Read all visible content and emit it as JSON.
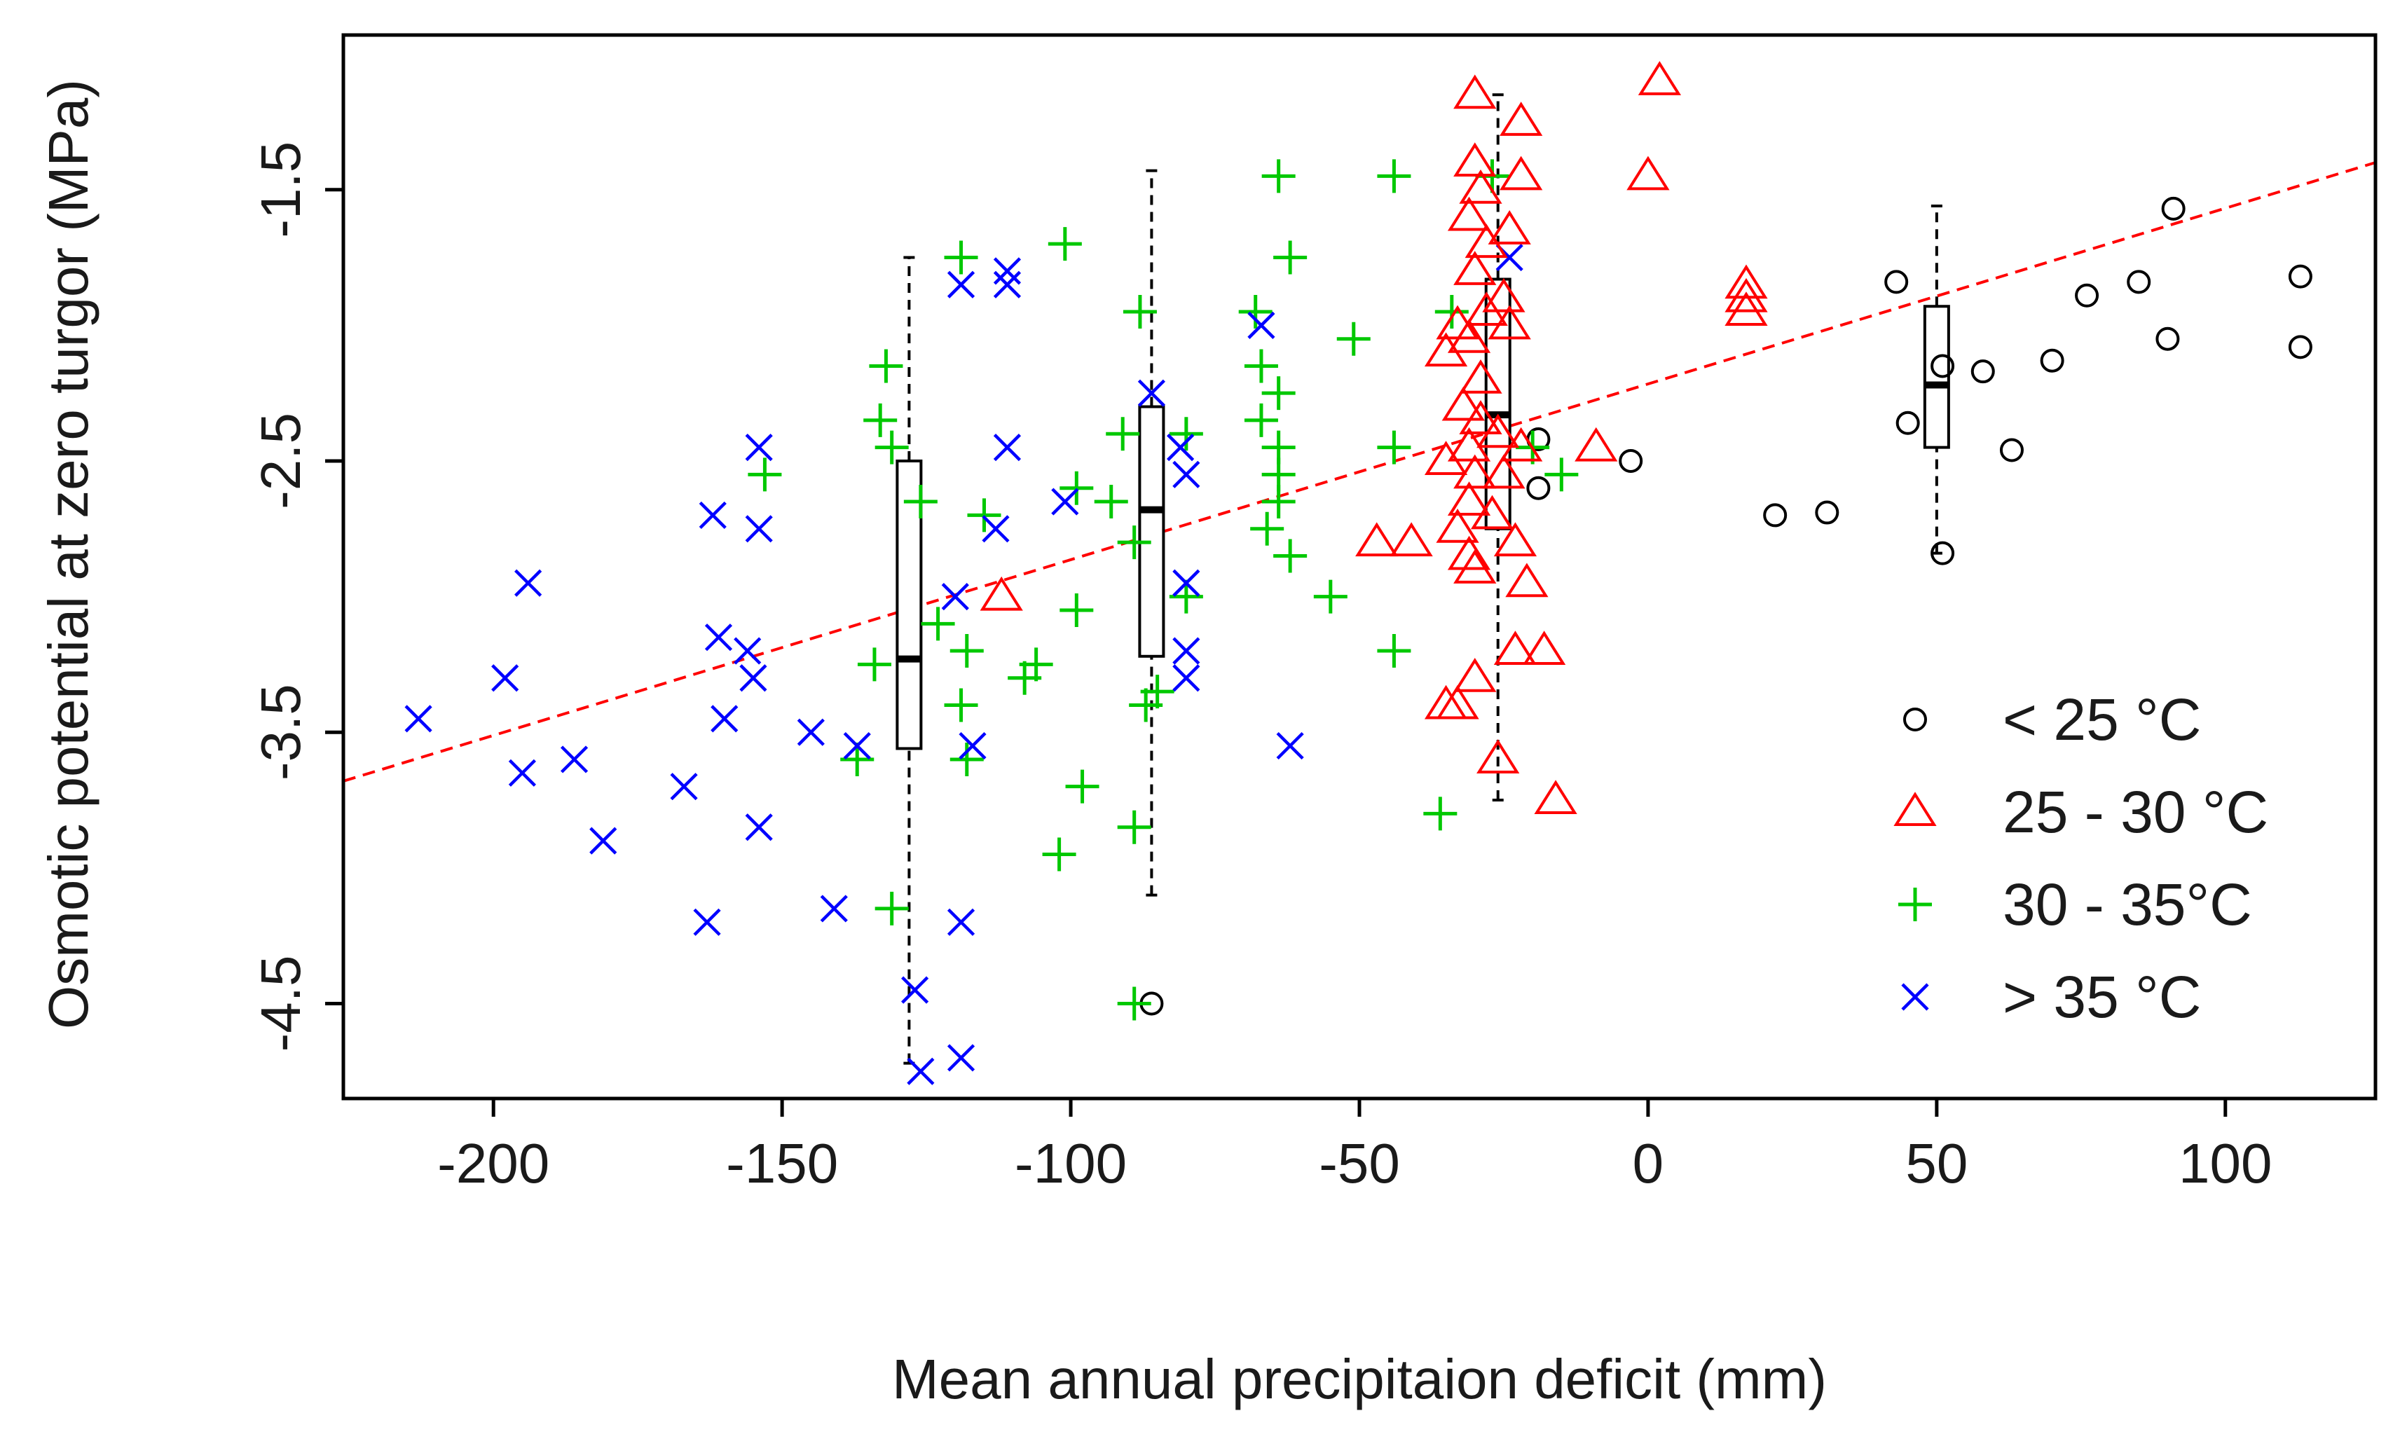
{
  "chart_data": {
    "type": "scatter",
    "title": "",
    "xlabel": "Mean annual precipitaion deficit  (mm)",
    "ylabel": "Osmotic potential at zero turgor (MPa)",
    "xlim": [
      -226,
      126
    ],
    "ylim": [
      -4.85,
      -0.93
    ],
    "x_ticks": [
      -200,
      -150,
      -100,
      -50,
      0,
      50,
      100
    ],
    "x_tick_labels": [
      "-200",
      "-150",
      "-100",
      "-50",
      "0",
      "50",
      "100"
    ],
    "y_ticks": [
      -4.5,
      -3.5,
      -2.5,
      -1.5
    ],
    "y_tick_labels": [
      "-4.5",
      "-3.5",
      "-2.5",
      "-1.5"
    ],
    "grid": false,
    "legend_position": "bottom-right",
    "colors": {
      "lt25": "#000000",
      "t25_30": "#ff0000",
      "t30_35": "#00c800",
      "gt35": "#0000ff",
      "trend": "#ff0000",
      "axis": "#000000"
    },
    "legend": [
      {
        "label": "< 25 °C",
        "series": "lt25",
        "marker": "circle"
      },
      {
        "label": "25 - 30 °C",
        "series": "t25_30",
        "marker": "triangle"
      },
      {
        "label": "30 - 35°C",
        "series": "t30_35",
        "marker": "plus"
      },
      {
        "label": "> 35 °C",
        "series": "gt35",
        "marker": "cross"
      }
    ],
    "trend_line": {
      "x": [
        -226,
        126
      ],
      "y": [
        -3.68,
        -1.4
      ],
      "style": "dashed"
    },
    "series": [
      {
        "name": "< 25 °C",
        "key": "lt25",
        "marker": "circle",
        "points": [
          [
            -86,
            -4.5
          ],
          [
            -19,
            -2.42
          ],
          [
            -19,
            -2.6
          ],
          [
            -3,
            -2.5
          ],
          [
            22,
            -2.7
          ],
          [
            31,
            -2.69
          ],
          [
            43,
            -1.84
          ],
          [
            45,
            -2.36
          ],
          [
            51,
            -2.15
          ],
          [
            51,
            -2.84
          ],
          [
            58,
            -2.17
          ],
          [
            63,
            -2.46
          ],
          [
            70,
            -2.13
          ],
          [
            76,
            -1.89
          ],
          [
            85,
            -1.84
          ],
          [
            90,
            -2.05
          ],
          [
            91,
            -1.57
          ],
          [
            113,
            -1.82
          ],
          [
            113,
            -2.08
          ]
        ]
      },
      {
        "name": "25 - 30 °C",
        "key": "t25_30",
        "marker": "triangle",
        "points": [
          [
            -30,
            -1.15
          ],
          [
            -22,
            -1.25
          ],
          [
            -30,
            -1.4
          ],
          [
            -29,
            -1.5
          ],
          [
            -22,
            -1.45
          ],
          [
            -31,
            -1.6
          ],
          [
            -28,
            -1.7
          ],
          [
            -24,
            -1.65
          ],
          [
            -30,
            -1.8
          ],
          [
            -28,
            -1.95
          ],
          [
            -33,
            -2.0
          ],
          [
            -25,
            -1.9
          ],
          [
            -24,
            -2.0
          ],
          [
            -31,
            -2.05
          ],
          [
            -35,
            -2.1
          ],
          [
            -29,
            -2.2
          ],
          [
            -32,
            -2.3
          ],
          [
            -29,
            -2.35
          ],
          [
            -26,
            -2.4
          ],
          [
            -31,
            -2.45
          ],
          [
            -35,
            -2.5
          ],
          [
            -30,
            -2.55
          ],
          [
            -25,
            -2.55
          ],
          [
            -31,
            -2.65
          ],
          [
            -27,
            -2.7
          ],
          [
            -33,
            -2.75
          ],
          [
            -23,
            -2.8
          ],
          [
            -31,
            -2.85
          ],
          [
            -30,
            -2.9
          ],
          [
            -21,
            -2.95
          ],
          [
            -47,
            -2.8
          ],
          [
            -41,
            -2.8
          ],
          [
            -23,
            -3.2
          ],
          [
            -18,
            -3.2
          ],
          [
            -30,
            -3.3
          ],
          [
            -33,
            -3.4
          ],
          [
            -35,
            -3.4
          ],
          [
            -26,
            -3.6
          ],
          [
            -16,
            -3.75
          ],
          [
            -9,
            -2.45
          ],
          [
            -22,
            -2.45
          ],
          [
            0,
            -1.45
          ],
          [
            2,
            -1.1
          ],
          [
            17,
            -1.85
          ],
          [
            17,
            -1.9
          ],
          [
            17,
            -1.95
          ],
          [
            -112,
            -3.0
          ]
        ]
      },
      {
        "name": "30 - 35°C",
        "key": "t30_35",
        "marker": "plus",
        "points": [
          [
            -132,
            -2.15
          ],
          [
            -133,
            -2.35
          ],
          [
            -131,
            -2.45
          ],
          [
            -153,
            -2.55
          ],
          [
            -126,
            -2.65
          ],
          [
            -134,
            -3.25
          ],
          [
            -137,
            -3.6
          ],
          [
            -131,
            -4.15
          ],
          [
            -123,
            -3.1
          ],
          [
            -119,
            -3.4
          ],
          [
            -118,
            -3.2
          ],
          [
            -115,
            -2.7
          ],
          [
            -118,
            -3.6
          ],
          [
            -108,
            -3.3
          ],
          [
            -106,
            -3.25
          ],
          [
            -101,
            -1.7
          ],
          [
            -99,
            -2.6
          ],
          [
            -99,
            -3.05
          ],
          [
            -98,
            -3.7
          ],
          [
            -102,
            -3.95
          ],
          [
            -93,
            -2.65
          ],
          [
            -91,
            -2.4
          ],
          [
            -89,
            -2.8
          ],
          [
            -87,
            -3.4
          ],
          [
            -88,
            -1.95
          ],
          [
            -89,
            -4.5
          ],
          [
            -89,
            -3.85
          ],
          [
            -119,
            -1.75
          ],
          [
            -80,
            -2.4
          ],
          [
            -80,
            -3.0
          ],
          [
            -68,
            -1.95
          ],
          [
            -67,
            -2.15
          ],
          [
            -67,
            -2.35
          ],
          [
            -64,
            -2.25
          ],
          [
            -64,
            -2.45
          ],
          [
            -64,
            -2.55
          ],
          [
            -64,
            -2.65
          ],
          [
            -66,
            -2.75
          ],
          [
            -62,
            -2.85
          ],
          [
            -64,
            -1.45
          ],
          [
            -62,
            -1.75
          ],
          [
            -55,
            -3.0
          ],
          [
            -51,
            -2.05
          ],
          [
            -44,
            -3.2
          ],
          [
            -44,
            -2.45
          ],
          [
            -44,
            -1.45
          ],
          [
            -36,
            -3.8
          ],
          [
            -34,
            -1.95
          ],
          [
            -27,
            -1.45
          ],
          [
            -20,
            -2.45
          ],
          [
            -15,
            -2.55
          ],
          [
            -85,
            -3.35
          ]
        ]
      },
      {
        "name": "> 35 °C",
        "key": "gt35",
        "marker": "cross",
        "points": [
          [
            -213,
            -3.45
          ],
          [
            -198,
            -3.3
          ],
          [
            -195,
            -3.65
          ],
          [
            -194,
            -2.95
          ],
          [
            -186,
            -3.6
          ],
          [
            -181,
            -3.9
          ],
          [
            -167,
            -3.7
          ],
          [
            -163,
            -4.2
          ],
          [
            -162,
            -2.7
          ],
          [
            -161,
            -3.15
          ],
          [
            -160,
            -3.45
          ],
          [
            -156,
            -3.2
          ],
          [
            -155,
            -3.3
          ],
          [
            -154,
            -3.85
          ],
          [
            -154,
            -2.45
          ],
          [
            -154,
            -2.75
          ],
          [
            -145,
            -3.5
          ],
          [
            -141,
            -4.15
          ],
          [
            -137,
            -3.55
          ],
          [
            -127,
            -4.45
          ],
          [
            -126,
            -4.75
          ],
          [
            -120,
            -3.0
          ],
          [
            -119,
            -4.2
          ],
          [
            -119,
            -4.7
          ],
          [
            -119,
            -1.85
          ],
          [
            -117,
            -3.55
          ],
          [
            -113,
            -2.75
          ],
          [
            -111,
            -2.45
          ],
          [
            -111,
            -1.8
          ],
          [
            -111,
            -1.85
          ],
          [
            -101,
            -2.65
          ],
          [
            -86,
            -2.25
          ],
          [
            -81,
            -2.45
          ],
          [
            -80,
            -2.55
          ],
          [
            -80,
            -2.95
          ],
          [
            -80,
            -3.2
          ],
          [
            -80,
            -3.3
          ],
          [
            -67,
            -2.0
          ],
          [
            -62,
            -3.55
          ],
          [
            -24,
            -1.75
          ]
        ]
      }
    ],
    "boxplots": [
      {
        "x": -128,
        "whisker_low": -4.72,
        "q1": -3.56,
        "median": -3.23,
        "q3": -2.5,
        "whisker_high": -1.75
      },
      {
        "x": -86,
        "whisker_low": -4.1,
        "q1": -3.22,
        "median": -2.68,
        "q3": -2.3,
        "whisker_high": -1.43
      },
      {
        "x": -26,
        "whisker_low": -3.75,
        "q1": -2.75,
        "median": -2.33,
        "q3": -1.83,
        "whisker_high": -1.15
      },
      {
        "x": 50,
        "whisker_low": -2.84,
        "q1": -2.45,
        "median": -2.22,
        "q3": -1.93,
        "whisker_high": -1.56
      }
    ]
  }
}
